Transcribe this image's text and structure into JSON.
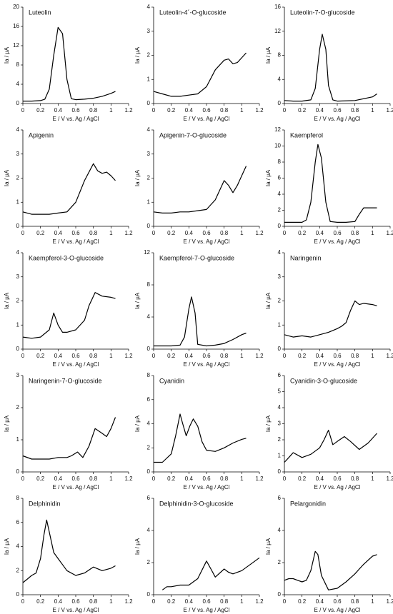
{
  "chart_data": [
    {
      "type": "line",
      "title": "Luteolin",
      "x_label": "E / V  vs. Ag / AgCl",
      "y_label": "Ia / µA",
      "color": "#000000",
      "xlim": [
        0,
        1.2
      ],
      "xticks": [
        0,
        0.2,
        0.4,
        0.6,
        0.8,
        1,
        1.2
      ],
      "ylim": [
        0,
        20
      ],
      "yticks": [
        0,
        4,
        8,
        12,
        16,
        20
      ],
      "x": [
        0,
        0.1,
        0.2,
        0.25,
        0.3,
        0.35,
        0.4,
        0.45,
        0.5,
        0.55,
        0.6,
        0.7,
        0.8,
        0.9,
        1.0,
        1.05
      ],
      "values": [
        0.5,
        0.5,
        0.6,
        0.9,
        3,
        10,
        15.8,
        14.5,
        5,
        1,
        0.8,
        0.9,
        1.1,
        1.5,
        2.1,
        2.5
      ]
    },
    {
      "type": "line",
      "title": "Luteolin-4´-O-glucoside",
      "x_label": "E / V  vs. Ag / AgCl",
      "y_label": "Ia / µA",
      "color": "#000000",
      "xlim": [
        0,
        1.2
      ],
      "xticks": [
        0,
        0.2,
        0.4,
        0.6,
        0.8,
        1,
        1.2
      ],
      "ylim": [
        0,
        4
      ],
      "yticks": [
        0,
        1,
        2,
        3,
        4
      ],
      "x": [
        0,
        0.1,
        0.2,
        0.3,
        0.4,
        0.5,
        0.6,
        0.7,
        0.8,
        0.85,
        0.9,
        0.95,
        1.0,
        1.05
      ],
      "values": [
        0.5,
        0.4,
        0.3,
        0.3,
        0.35,
        0.4,
        0.7,
        1.4,
        1.8,
        1.85,
        1.65,
        1.7,
        1.9,
        2.1
      ]
    },
    {
      "type": "line",
      "title": "Luteolin-7-O-glucoside",
      "x_label": "E / V  vs. Ag / AgCl",
      "y_label": "Ia / µA",
      "color": "#000000",
      "xlim": [
        0,
        1.2
      ],
      "xticks": [
        0,
        0.2,
        0.4,
        0.6,
        0.8,
        1,
        1.2
      ],
      "ylim": [
        0,
        16
      ],
      "yticks": [
        0,
        4,
        8,
        12,
        16
      ],
      "x": [
        0,
        0.1,
        0.2,
        0.3,
        0.35,
        0.4,
        0.43,
        0.47,
        0.5,
        0.55,
        0.6,
        0.8,
        1.0,
        1.05
      ],
      "values": [
        0.5,
        0.4,
        0.4,
        0.6,
        2.5,
        9,
        11.5,
        9,
        3,
        0.6,
        0.4,
        0.5,
        1.1,
        1.6
      ]
    },
    {
      "type": "line",
      "title": "Apigenin",
      "x_label": "E / V  vs. Ag / AgCl",
      "y_label": "Ia / µA",
      "color": "#000000",
      "xlim": [
        0,
        1.2
      ],
      "xticks": [
        0,
        0.2,
        0.4,
        0.6,
        0.8,
        1,
        1.2
      ],
      "ylim": [
        0,
        4
      ],
      "yticks": [
        0,
        1,
        2,
        3,
        4
      ],
      "x": [
        0,
        0.1,
        0.2,
        0.3,
        0.4,
        0.5,
        0.6,
        0.7,
        0.8,
        0.85,
        0.9,
        0.95,
        1.0,
        1.05
      ],
      "values": [
        0.6,
        0.5,
        0.5,
        0.5,
        0.55,
        0.6,
        1.0,
        1.9,
        2.6,
        2.3,
        2.2,
        2.25,
        2.1,
        1.9
      ]
    },
    {
      "type": "line",
      "title": "Apigenin-7-O-glucoside",
      "x_label": "E / V  vs. Ag / AgCl",
      "y_label": "Ia / µA",
      "color": "#000000",
      "xlim": [
        0,
        1.2
      ],
      "xticks": [
        0,
        0.2,
        0.4,
        0.6,
        0.8,
        1,
        1.2
      ],
      "ylim": [
        0,
        4
      ],
      "yticks": [
        0,
        1,
        2,
        3,
        4
      ],
      "x": [
        0,
        0.1,
        0.2,
        0.3,
        0.4,
        0.5,
        0.6,
        0.7,
        0.8,
        0.85,
        0.9,
        0.95,
        1.0,
        1.05
      ],
      "values": [
        0.6,
        0.55,
        0.55,
        0.6,
        0.6,
        0.65,
        0.7,
        1.1,
        1.9,
        1.7,
        1.4,
        1.7,
        2.1,
        2.5
      ]
    },
    {
      "type": "line",
      "title": "Kaempferol",
      "x_label": "E / V  vs. Ag / AgCl",
      "y_label": "Ia / µA",
      "color": "#000000",
      "xlim": [
        0,
        1.2
      ],
      "xticks": [
        0,
        0.2,
        0.4,
        0.6,
        0.8,
        1,
        1.2
      ],
      "ylim": [
        0,
        12
      ],
      "yticks": [
        0,
        2,
        4,
        6,
        8,
        10,
        12
      ],
      "x": [
        0,
        0.1,
        0.2,
        0.25,
        0.3,
        0.35,
        0.38,
        0.42,
        0.47,
        0.52,
        0.6,
        0.7,
        0.8,
        0.85,
        0.9,
        1.0,
        1.05
      ],
      "values": [
        0.5,
        0.5,
        0.5,
        0.8,
        3,
        8,
        10.2,
        8.5,
        3,
        0.6,
        0.5,
        0.5,
        0.6,
        1.5,
        2.3,
        2.3,
        2.3
      ]
    },
    {
      "type": "line",
      "title": "Kaempferol-3-O-glucoside",
      "x_label": "E / V  vs. Ag / AgCl",
      "y_label": "Ia / µA",
      "color": "#000000",
      "xlim": [
        0,
        1.2
      ],
      "xticks": [
        0,
        0.2,
        0.4,
        0.6,
        0.8,
        1,
        1.2
      ],
      "ylim": [
        0,
        4
      ],
      "yticks": [
        0,
        1,
        2,
        3,
        4
      ],
      "x": [
        0,
        0.1,
        0.2,
        0.3,
        0.35,
        0.4,
        0.45,
        0.5,
        0.6,
        0.7,
        0.75,
        0.82,
        0.9,
        1.0,
        1.05
      ],
      "values": [
        0.5,
        0.45,
        0.5,
        0.8,
        1.5,
        1.0,
        0.7,
        0.7,
        0.8,
        1.2,
        1.8,
        2.35,
        2.2,
        2.15,
        2.1
      ]
    },
    {
      "type": "line",
      "title": "Kaempferol-7-O-glucoside",
      "x_label": "E / V  vs. Ag / AgCl",
      "y_label": "Ia / µA",
      "color": "#000000",
      "xlim": [
        0,
        1.2
      ],
      "xticks": [
        0,
        0.2,
        0.4,
        0.6,
        0.8,
        1,
        1.2
      ],
      "ylim": [
        0,
        12
      ],
      "yticks": [
        0,
        4,
        8,
        12
      ],
      "x": [
        0,
        0.1,
        0.2,
        0.3,
        0.35,
        0.4,
        0.43,
        0.47,
        0.5,
        0.6,
        0.7,
        0.8,
        0.9,
        1.0,
        1.05
      ],
      "values": [
        0.4,
        0.4,
        0.4,
        0.5,
        1.5,
        5,
        6.5,
        4.5,
        0.6,
        0.4,
        0.5,
        0.7,
        1.2,
        1.8,
        2.0
      ]
    },
    {
      "type": "line",
      "title": "Naringenin",
      "x_label": "E / V  vs. Ag / AgCl",
      "y_label": "Ia / µA",
      "color": "#000000",
      "xlim": [
        0,
        1.2
      ],
      "xticks": [
        0,
        0.2,
        0.4,
        0.6,
        0.8,
        1,
        1.2
      ],
      "ylim": [
        0,
        4
      ],
      "yticks": [
        0,
        1,
        2,
        3,
        4
      ],
      "x": [
        0,
        0.1,
        0.2,
        0.3,
        0.4,
        0.5,
        0.6,
        0.65,
        0.7,
        0.75,
        0.8,
        0.85,
        0.9,
        1.0,
        1.05
      ],
      "values": [
        0.6,
        0.5,
        0.55,
        0.5,
        0.6,
        0.7,
        0.85,
        0.95,
        1.1,
        1.6,
        2.0,
        1.85,
        1.9,
        1.85,
        1.8
      ]
    },
    {
      "type": "line",
      "title": "Naringenin-7-O-glucoside",
      "x_label": "E / V  vs. Ag / AgCl",
      "y_label": "Ia / µA",
      "color": "#000000",
      "xlim": [
        0,
        1.2
      ],
      "xticks": [
        0,
        0.2,
        0.4,
        0.6,
        0.8,
        1,
        1.2
      ],
      "ylim": [
        0,
        3
      ],
      "yticks": [
        0,
        1,
        2,
        3
      ],
      "x": [
        0,
        0.1,
        0.2,
        0.3,
        0.4,
        0.5,
        0.55,
        0.62,
        0.68,
        0.75,
        0.82,
        0.9,
        0.95,
        1.0,
        1.05
      ],
      "values": [
        0.5,
        0.4,
        0.4,
        0.4,
        0.45,
        0.45,
        0.5,
        0.62,
        0.45,
        0.8,
        1.35,
        1.2,
        1.1,
        1.35,
        1.7
      ]
    },
    {
      "type": "line",
      "title": "Cyanidin",
      "x_label": "E / V  vs. Ag / AgCl",
      "y_label": "Ia / µA",
      "color": "#000000",
      "xlim": [
        0,
        1.2
      ],
      "xticks": [
        0,
        0.2,
        0.4,
        0.6,
        0.8,
        1,
        1.2
      ],
      "ylim": [
        0,
        8
      ],
      "yticks": [
        0,
        2,
        4,
        6,
        8
      ],
      "x": [
        0,
        0.1,
        0.2,
        0.25,
        0.3,
        0.33,
        0.37,
        0.41,
        0.45,
        0.5,
        0.55,
        0.6,
        0.7,
        0.8,
        0.9,
        1.0,
        1.05
      ],
      "values": [
        0.8,
        0.8,
        1.5,
        3,
        4.8,
        4.0,
        3.0,
        3.8,
        4.4,
        3.8,
        2.5,
        1.8,
        1.7,
        2.0,
        2.4,
        2.7,
        2.8
      ]
    },
    {
      "type": "line",
      "title": "Cyanidin-3-O-glucoside",
      "x_label": "E / V  vs. Ag / AgCl",
      "y_label": "Ia / µA",
      "color": "#000000",
      "xlim": [
        0,
        1.2
      ],
      "xticks": [
        0,
        0.2,
        0.4,
        0.6,
        0.8,
        1,
        1.2
      ],
      "ylim": [
        0,
        6
      ],
      "yticks": [
        0,
        1,
        2,
        3,
        4,
        5,
        6
      ],
      "x": [
        0,
        0.05,
        0.1,
        0.2,
        0.3,
        0.4,
        0.45,
        0.5,
        0.55,
        0.6,
        0.68,
        0.75,
        0.85,
        0.95,
        1.05
      ],
      "values": [
        0.6,
        0.9,
        1.2,
        0.9,
        1.1,
        1.5,
        2.0,
        2.6,
        1.7,
        1.9,
        2.2,
        1.9,
        1.4,
        1.8,
        2.4
      ]
    },
    {
      "type": "line",
      "title": "Delphinidin",
      "x_label": "E / V  vs. Ag / AgCl",
      "y_label": "Ia / µA",
      "color": "#000000",
      "xlim": [
        0,
        1.2
      ],
      "xticks": [
        0,
        0.2,
        0.4,
        0.6,
        0.8,
        1,
        1.2
      ],
      "ylim": [
        0,
        8
      ],
      "yticks": [
        0,
        2,
        4,
        6,
        8
      ],
      "x": [
        0,
        0.05,
        0.1,
        0.15,
        0.2,
        0.24,
        0.27,
        0.3,
        0.35,
        0.4,
        0.45,
        0.5,
        0.6,
        0.7,
        0.8,
        0.9,
        1.0,
        1.05
      ],
      "values": [
        1.0,
        1.3,
        1.6,
        1.8,
        3.0,
        5.0,
        6.2,
        5.2,
        3.5,
        3.0,
        2.5,
        2.0,
        1.6,
        1.8,
        2.3,
        2.0,
        2.2,
        2.4
      ]
    },
    {
      "type": "line",
      "title": "Delphinidin-3-O-glucoside",
      "x_label": "E / V  vs. Ag / AgCl",
      "y_label": "Ia / µA",
      "color": "#000000",
      "xlim": [
        0,
        1.2
      ],
      "xticks": [
        0,
        0.2,
        0.4,
        0.6,
        0.8,
        1,
        1.2
      ],
      "ylim": [
        0,
        6
      ],
      "yticks": [
        0,
        2,
        4,
        6
      ],
      "x": [
        0.1,
        0.15,
        0.2,
        0.3,
        0.4,
        0.5,
        0.6,
        0.65,
        0.7,
        0.8,
        0.85,
        0.9,
        1.0,
        1.1,
        1.2
      ],
      "values": [
        0.3,
        0.5,
        0.5,
        0.6,
        0.6,
        1.0,
        2.1,
        1.6,
        1.1,
        1.6,
        1.4,
        1.3,
        1.5,
        1.9,
        2.3
      ]
    },
    {
      "type": "line",
      "title": "Pelargonidin",
      "x_label": "E / V  vs. Ag / AgCl",
      "y_label": "Ia / µA",
      "color": "#000000",
      "xlim": [
        0,
        1.2
      ],
      "xticks": [
        0,
        0.2,
        0.4,
        0.6,
        0.8,
        1,
        1.2
      ],
      "ylim": [
        0,
        6
      ],
      "yticks": [
        0,
        2,
        4,
        6
      ],
      "x": [
        0,
        0.05,
        0.1,
        0.15,
        0.2,
        0.25,
        0.3,
        0.35,
        0.38,
        0.42,
        0.5,
        0.6,
        0.7,
        0.8,
        0.85,
        0.9,
        1.0,
        1.05
      ],
      "values": [
        0.9,
        1.0,
        1.0,
        0.9,
        0.8,
        0.9,
        1.5,
        2.7,
        2.5,
        1.2,
        0.3,
        0.4,
        0.8,
        1.3,
        1.6,
        1.9,
        2.4,
        2.5
      ]
    }
  ]
}
